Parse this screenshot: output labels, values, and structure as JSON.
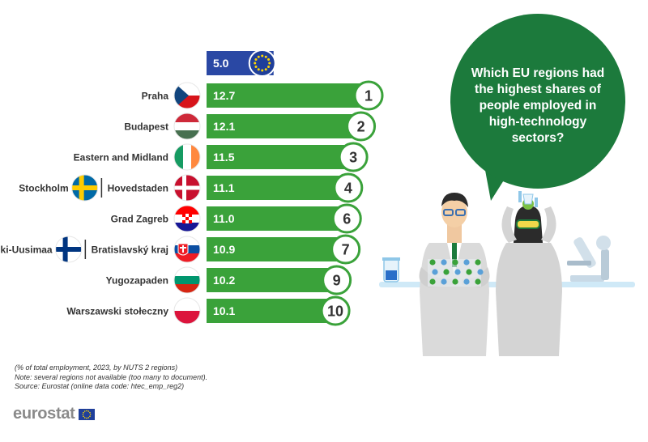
{
  "bubble": {
    "lines": [
      "Which EU regions had",
      "the highest shares of",
      "people employed in",
      "high-technology",
      "sectors?"
    ]
  },
  "notes": {
    "line1": "(% of total employment, 2023, by NUTS 2 regions)",
    "line2": "Note: several regions not available (too many to document).",
    "line3": "Source: Eurostat (online data code: htec_emp_reg2)"
  },
  "logo": {
    "text": "eurostat"
  },
  "colors": {
    "eu_bar": "#2a48a4",
    "region_bar": "#3aa23a",
    "bubble": "#1c7a3c",
    "logo_grey": "#8a8a8a"
  },
  "chart_data": {
    "type": "bar",
    "orientation": "horizontal",
    "eu_average": {
      "value": 5.0,
      "label": "5.0",
      "icon": "eu-flag-icon"
    },
    "categories": [
      "Praha",
      "Budapest",
      "Eastern and Midland",
      "Stockholm | Hovedstaden",
      "Grad Zagreb",
      "Helsinki-Uusimaa | Bratislavský kraj",
      "Yugozapaden",
      "Warszawski stołeczny"
    ],
    "values": [
      12.7,
      12.1,
      11.5,
      11.1,
      11.0,
      10.9,
      10.2,
      10.1
    ],
    "rows": [
      {
        "regions": [
          "Praha"
        ],
        "flags": [
          "czechia"
        ],
        "value": 12.7,
        "label": "12.7",
        "rank": "1"
      },
      {
        "regions": [
          "Budapest"
        ],
        "flags": [
          "hungary"
        ],
        "value": 12.1,
        "label": "12.1",
        "rank": "2"
      },
      {
        "regions": [
          "Eastern and Midland"
        ],
        "flags": [
          "ireland"
        ],
        "value": 11.5,
        "label": "11.5",
        "rank": "3"
      },
      {
        "regions": [
          "Stockholm",
          "Hovedstaden"
        ],
        "flags": [
          "sweden",
          "denmark"
        ],
        "value": 11.1,
        "label": "11.1",
        "rank": "4"
      },
      {
        "regions": [
          "Grad Zagreb"
        ],
        "flags": [
          "croatia"
        ],
        "value": 11.0,
        "label": "11.0",
        "rank": "6"
      },
      {
        "regions": [
          "Helsinki-Uusimaa",
          "Bratislavský kraj"
        ],
        "flags": [
          "finland",
          "slovakia"
        ],
        "value": 10.9,
        "label": "10.9",
        "rank": "7"
      },
      {
        "regions": [
          "Yugozapaden"
        ],
        "flags": [
          "bulgaria"
        ],
        "value": 10.2,
        "label": "10.2",
        "rank": "9"
      },
      {
        "regions": [
          "Warszawski stołeczny"
        ],
        "flags": [
          "poland"
        ],
        "value": 10.1,
        "label": "10.1",
        "rank": "10"
      }
    ]
  }
}
